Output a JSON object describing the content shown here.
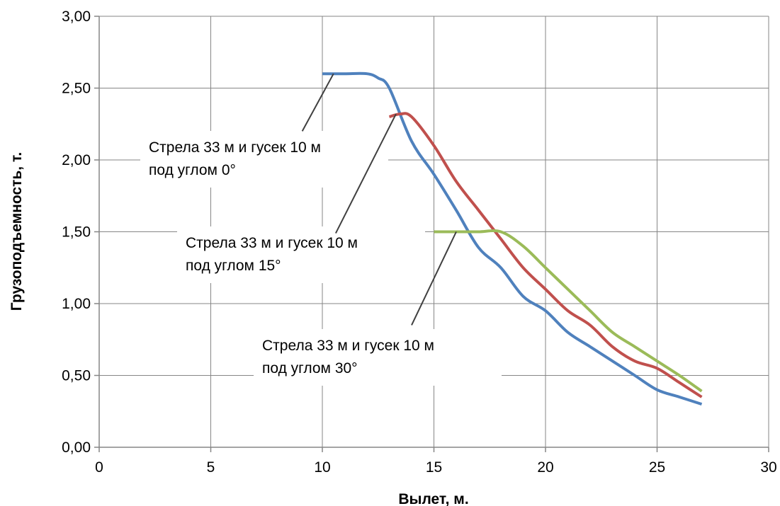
{
  "chart_data": {
    "type": "line",
    "title": "",
    "xlabel": "Вылет, м.",
    "ylabel": "Грузоподъемность, т.",
    "xlim": [
      0,
      30
    ],
    "ylim": [
      0,
      3
    ],
    "xticks": [
      0,
      5,
      10,
      15,
      20,
      25,
      30
    ],
    "yticks": [
      0,
      0.5,
      1,
      1.5,
      2,
      2.5,
      3
    ],
    "xtick_labels": [
      "0",
      "5",
      "10",
      "15",
      "20",
      "25",
      "30"
    ],
    "ytick_labels": [
      "0,00",
      "0,50",
      "1,00",
      "1,50",
      "2,00",
      "2,50",
      "3,00"
    ],
    "grid": true,
    "legend": "none",
    "series": [
      {
        "color": "#4F81BD",
        "x": [
          10,
          11,
          12,
          12.5,
          13,
          14,
          15,
          16,
          17,
          18,
          19,
          20,
          21,
          22,
          23,
          24,
          25,
          26,
          27
        ],
        "y": [
          2.6,
          2.6,
          2.6,
          2.57,
          2.5,
          2.13,
          1.9,
          1.65,
          1.39,
          1.25,
          1.05,
          0.95,
          0.8,
          0.7,
          0.6,
          0.5,
          0.4,
          0.35,
          0.3
        ]
      },
      {
        "color": "#C0504D",
        "x": [
          13,
          13.5,
          14,
          15,
          16,
          17,
          18,
          19,
          20,
          21,
          22,
          23,
          24,
          25,
          26,
          27
        ],
        "y": [
          2.3,
          2.32,
          2.3,
          2.1,
          1.85,
          1.65,
          1.45,
          1.25,
          1.1,
          0.95,
          0.85,
          0.7,
          0.6,
          0.55,
          0.45,
          0.35
        ]
      },
      {
        "color": "#9BBB59",
        "x": [
          15,
          16,
          17,
          18,
          19,
          20,
          21,
          22,
          23,
          24,
          25,
          26,
          27
        ],
        "y": [
          1.5,
          1.5,
          1.5,
          1.5,
          1.4,
          1.25,
          1.1,
          0.95,
          0.8,
          0.7,
          0.6,
          0.5,
          0.39
        ]
      }
    ],
    "annotations": [
      {
        "lines": [
          "Стрела 33 м и гусек 10 м",
          "под углом 0°"
        ],
        "point": [
          10.5,
          2.6
        ],
        "from": [
          9.1,
          2.2
        ]
      },
      {
        "lines": [
          "Стрела 33 м и гусек 10 м",
          "под углом 15°"
        ],
        "point": [
          13.3,
          2.32
        ],
        "from": [
          10.6,
          1.49
        ]
      },
      {
        "lines": [
          "Стрела 33 м и гусек 10 м",
          "под углом 30°"
        ],
        "point": [
          16,
          1.5
        ],
        "from": [
          14.0,
          0.85
        ]
      }
    ]
  }
}
